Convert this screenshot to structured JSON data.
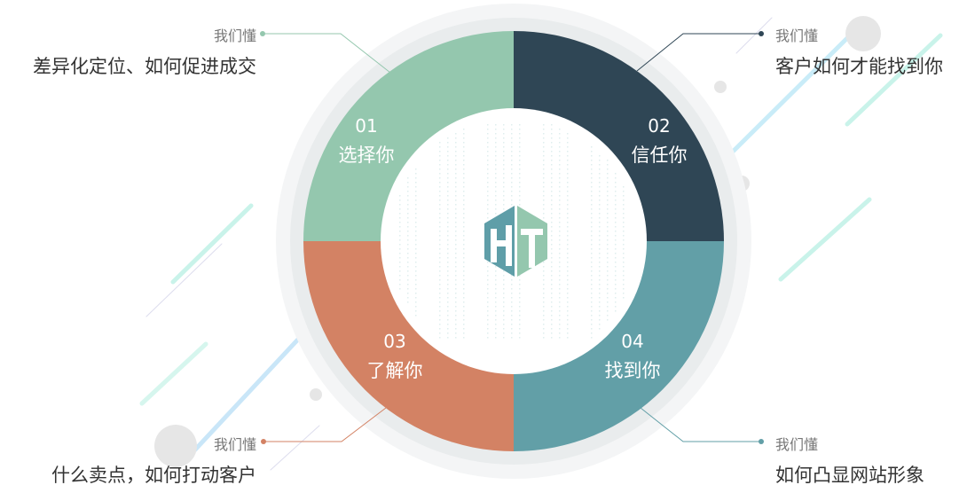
{
  "colors": {
    "q1": "#94c7ae",
    "q2": "#2f4655",
    "q3": "#d38264",
    "q4": "#629fa7",
    "halo": "#eef0f1",
    "deco": "#c9f3ea"
  },
  "logo": {
    "text": "HT"
  },
  "segments": [
    {
      "num": "01",
      "label": "选择你",
      "tag": "我们懂",
      "desc": "差异化定位、如何促进成交"
    },
    {
      "num": "02",
      "label": "信任你",
      "tag": "我们懂",
      "desc": "客户如何才能找到你"
    },
    {
      "num": "03",
      "label": "了解你",
      "tag": "我们懂",
      "desc": "什么卖点，如何打动客户"
    },
    {
      "num": "04",
      "label": "找到你",
      "tag": "我们懂",
      "desc": "如何凸显网站形象"
    }
  ]
}
